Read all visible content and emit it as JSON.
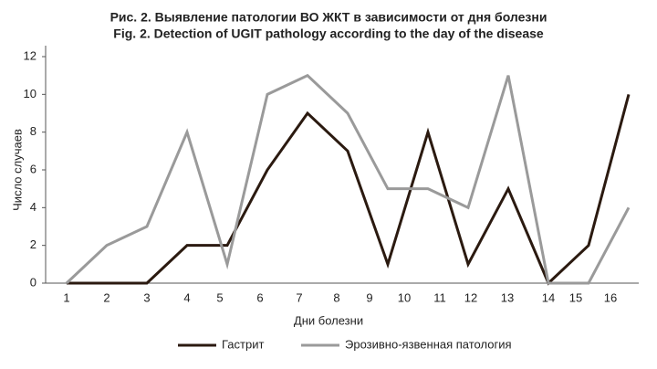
{
  "chart_data": {
    "type": "line",
    "title": "Рис. 2. Выявление патологии ВО ЖКТ в зависимости от дня болезни",
    "subtitle": "Fig. 2. Detection of UGIT pathology according to the day of the disease",
    "xlabel": "Дни болезни",
    "ylabel": "Число случаев",
    "xticks": [
      "1",
      "2",
      "3",
      "4",
      "5",
      "6",
      "7",
      "8",
      "9",
      "10",
      "11",
      "12",
      "13",
      "14",
      "15",
      "16"
    ],
    "ylim": [
      0,
      12
    ],
    "yticks": [
      0,
      2,
      4,
      6,
      8,
      10,
      12
    ],
    "series": [
      {
        "name": "Гастрит",
        "color": "#2b1a10",
        "values": [
          0,
          0,
          0,
          2,
          2,
          6,
          9,
          7,
          1,
          8,
          1,
          5,
          0,
          2,
          10
        ]
      },
      {
        "name": "Эрозивно-язвенная патология",
        "color": "#9a9a9a",
        "values": [
          0,
          2,
          3,
          8,
          1,
          10,
          11,
          9,
          5,
          5,
          4,
          11,
          0,
          0,
          4
        ]
      }
    ]
  }
}
